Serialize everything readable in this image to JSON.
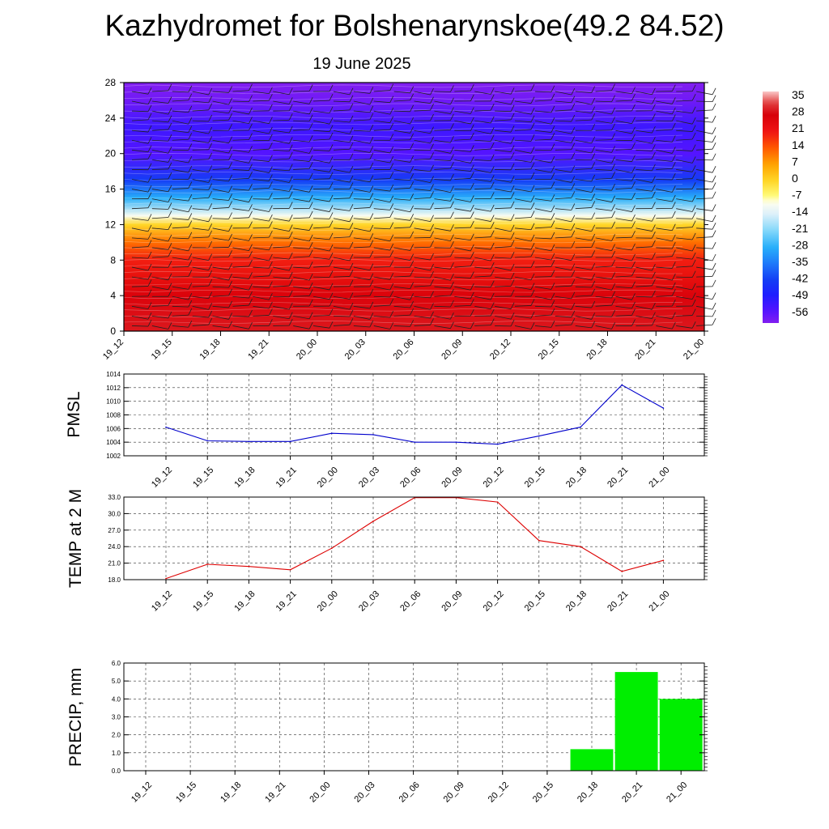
{
  "title": "Kazhydromet for Bolshenarynskoe(49.2 84.52)",
  "subtitle": "19 June 2025",
  "colors": {
    "pmsl_line": "#0000cc",
    "temp_line": "#dd0000",
    "precip_bar": "#00ee00",
    "grid": "#333333"
  },
  "chart_data": [
    {
      "id": "cross_section",
      "type": "heatmap",
      "title": "",
      "xlabel": "",
      "ylabel": "",
      "categories": [
        "19_12",
        "19_15",
        "19_18",
        "19_21",
        "20_00",
        "20_03",
        "20_06",
        "20_09",
        "20_12",
        "20_15",
        "20_18",
        "20_21",
        "21_00"
      ],
      "y_ticks": [
        "0",
        "4",
        "8",
        "12",
        "16",
        "20",
        "24",
        "28"
      ],
      "ylim": [
        0,
        28
      ],
      "colorbar": {
        "labels": [
          "35",
          "28",
          "21",
          "14",
          "7",
          "0",
          "-7",
          "-14",
          "-21",
          "-28",
          "-35",
          "-42",
          "-49",
          "-56"
        ],
        "range": [
          -60,
          38
        ]
      },
      "temperature_profile": [
        {
          "height": 0,
          "value": 30
        },
        {
          "height": 4,
          "value": 27
        },
        {
          "height": 8,
          "value": 20
        },
        {
          "height": 10,
          "value": 12
        },
        {
          "height": 12,
          "value": 0
        },
        {
          "height": 13,
          "value": -10
        },
        {
          "height": 15,
          "value": -28
        },
        {
          "height": 17,
          "value": -42
        },
        {
          "height": 20,
          "value": -55
        },
        {
          "height": 23,
          "value": -52
        },
        {
          "height": 26,
          "value": -58
        },
        {
          "height": 28,
          "value": -60
        }
      ],
      "wind_barbs": "present"
    },
    {
      "id": "pmsl",
      "type": "line",
      "ylabel": "PMSL",
      "categories": [
        "19_12",
        "19_15",
        "19_18",
        "19_21",
        "20_00",
        "20_03",
        "20_06",
        "20_09",
        "20_12",
        "20_15",
        "20_18",
        "20_21",
        "21_00"
      ],
      "y_ticks": [
        "1002",
        "1004",
        "1006",
        "1008",
        "1010",
        "1012",
        "1014"
      ],
      "ylim": [
        1002,
        1014
      ],
      "grid": true,
      "series": [
        {
          "values": [
            1006.2,
            1004.2,
            1004.1,
            1004.1,
            1005.3,
            1005.1,
            1004.0,
            1004.0,
            1003.7,
            1004.9,
            1006.2,
            1012.4,
            1009.0
          ]
        }
      ]
    },
    {
      "id": "temp2m",
      "type": "line",
      "ylabel": "TEMP at 2 M",
      "categories": [
        "19_12",
        "19_15",
        "19_18",
        "19_21",
        "20_00",
        "20_03",
        "20_06",
        "20_09",
        "20_12",
        "20_15",
        "20_18",
        "20_21",
        "21_00"
      ],
      "y_ticks": [
        "18.0",
        "21.0",
        "24.0",
        "27.0",
        "30.0",
        "33.0"
      ],
      "ylim": [
        18,
        33
      ],
      "grid": true,
      "series": [
        {
          "values": [
            18.2,
            20.8,
            20.4,
            19.8,
            23.7,
            28.6,
            32.9,
            32.9,
            32.1,
            25.1,
            24.0,
            19.5,
            21.5
          ]
        }
      ]
    },
    {
      "id": "precip",
      "type": "bar",
      "ylabel": "PRECIP, mm",
      "categories": [
        "19_12",
        "19_15",
        "19_18",
        "19_21",
        "20_00",
        "20_03",
        "20_06",
        "20_09",
        "20_12",
        "20_15",
        "20_18",
        "20_21",
        "21_00"
      ],
      "y_ticks": [
        "0.0",
        "1.0",
        "2.0",
        "3.0",
        "4.0",
        "5.0",
        "6.0"
      ],
      "ylim": [
        0,
        6
      ],
      "grid": true,
      "values": [
        0,
        0,
        0,
        0,
        0,
        0,
        0,
        0,
        0,
        0,
        1.2,
        5.5,
        4.0
      ]
    }
  ]
}
